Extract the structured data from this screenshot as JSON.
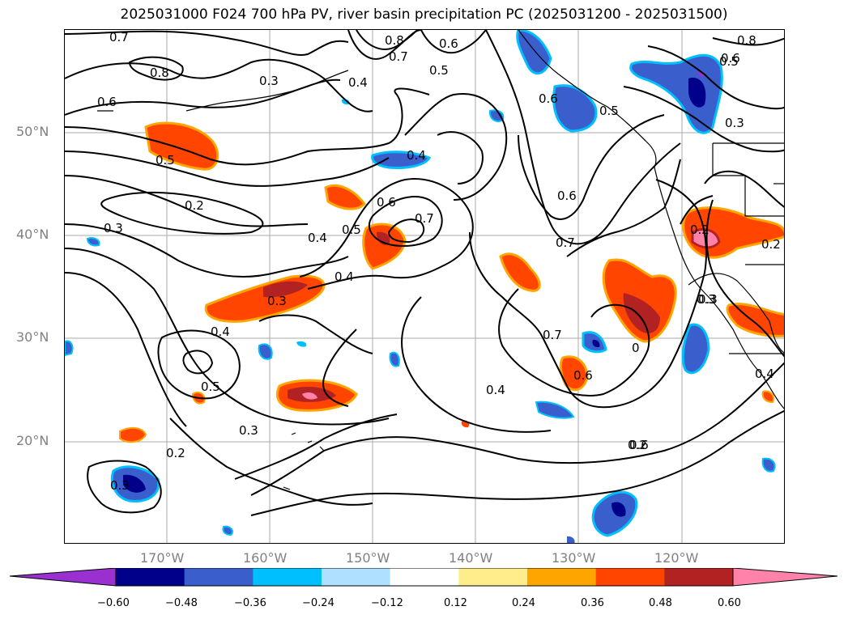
{
  "title": "2025031000 F024 700 hPa PV, river basin precipitation PC (2025031200 - 2025031500)",
  "axes": {
    "lat_labels": [
      "50°N",
      "40°N",
      "30°N",
      "20°N"
    ],
    "lon_labels": [
      "170°W",
      "160°W",
      "150°W",
      "140°W",
      "130°W",
      "120°W"
    ]
  },
  "contour_labels": [
    "0.7",
    "0.8",
    "0.6",
    "0.7",
    "0.5",
    "0.8",
    "0.6",
    "0.5",
    "0.4",
    "0.3",
    "0.6",
    "0.5",
    "0.2",
    "0.3",
    "0.4",
    "0.6",
    "0.7",
    "0.4",
    "0.5",
    "0.6",
    "0.7",
    "0.4",
    "0.3",
    "0.4",
    "0.5",
    "0.3",
    "0.2",
    "0.7",
    "0.6",
    "0.6",
    "0.3",
    "0.2",
    "0.2",
    "0.3",
    "0.4",
    "0.2",
    "0.8",
    "0.6",
    "0.5",
    "0.3",
    "0.4",
    "0",
    "0.3"
  ],
  "colorbar": {
    "colors": [
      "#9b30d0",
      "#00008b",
      "#3a5fcd",
      "#00bfff",
      "#b0e0ff",
      "#ffffff",
      "#ffec8b",
      "#ffa500",
      "#ff4500",
      "#b22222",
      "#ff82ab"
    ],
    "tick_labels": [
      "−0.60",
      "−0.48",
      "−0.36",
      "−0.24",
      "−0.12",
      "0.12",
      "0.24",
      "0.36",
      "0.48",
      "0.60"
    ]
  }
}
